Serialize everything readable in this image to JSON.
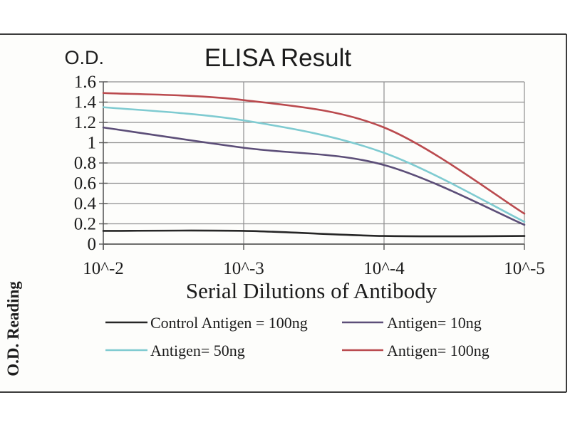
{
  "colors": {
    "frame_border": "#3c3c3c",
    "plot_background": "#fdfdfb",
    "grid": "#8f8f8f",
    "axis": "#595959",
    "text": "#1c1c1c"
  },
  "chart_data": {
    "type": "line",
    "title": "ELISA Result",
    "y_axis_unit_label": "O.D.",
    "xlabel": "Serial Dilutions of Antibody",
    "ylabel": "O.D. Reading",
    "categories": [
      "10^-2",
      "10^-3",
      "10^-4",
      "10^-5"
    ],
    "y_ticks": [
      "1.6",
      "1.4",
      "1.2",
      "1",
      "0.8",
      "0.6",
      "0.4",
      "0.2",
      "0"
    ],
    "ylim": [
      0,
      1.6
    ],
    "grid": true,
    "legend_position": "bottom",
    "series": [
      {
        "name": "Control Antigen = 100ng",
        "color": "#262626",
        "values": [
          0.13,
          0.13,
          0.08,
          0.08
        ]
      },
      {
        "name": "Antigen= 10ng",
        "color": "#5c4e78",
        "values": [
          1.15,
          0.95,
          0.78,
          0.19
        ]
      },
      {
        "name": "Antigen= 50ng",
        "color": "#7fcbd1",
        "values": [
          1.35,
          1.22,
          0.9,
          0.22
        ]
      },
      {
        "name": "Antigen= 100ng",
        "color": "#ba4a4e",
        "values": [
          1.49,
          1.42,
          1.15,
          0.3
        ]
      }
    ]
  }
}
